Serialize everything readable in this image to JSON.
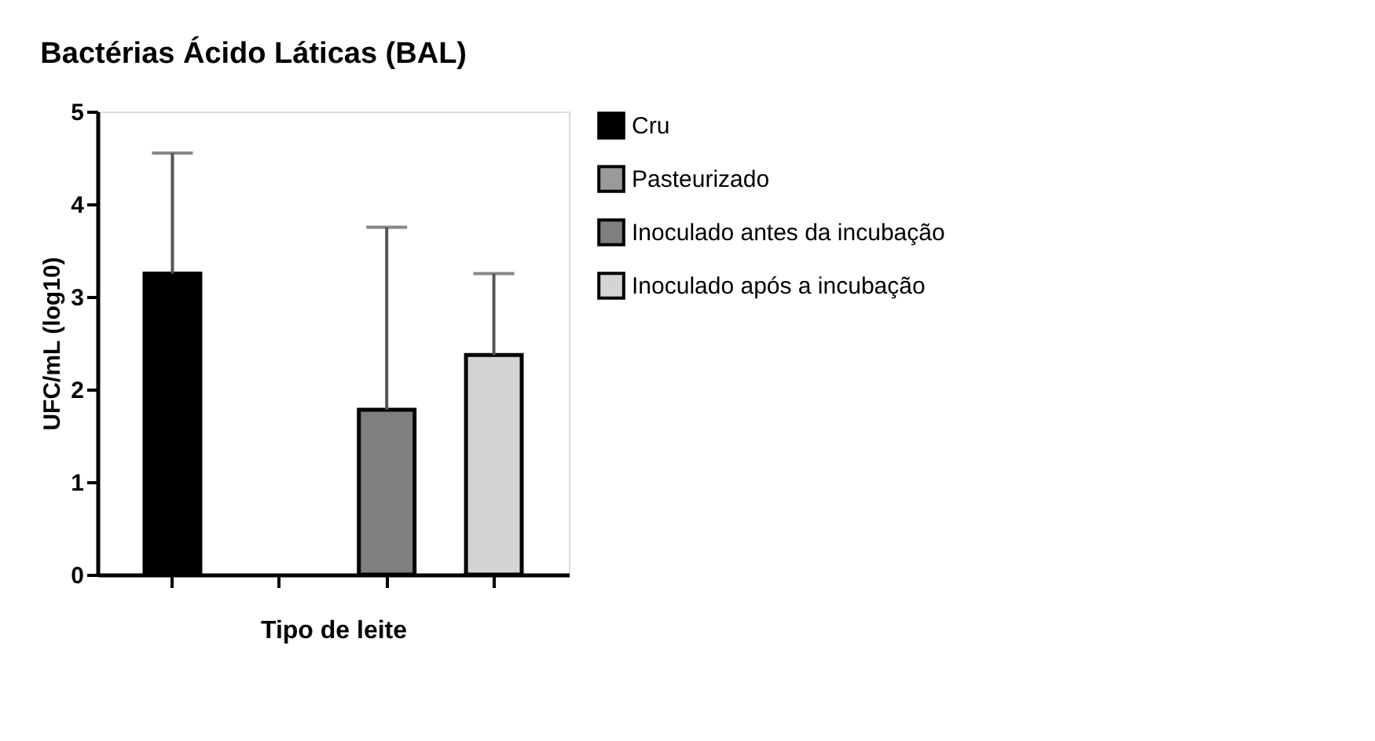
{
  "chart_data": {
    "type": "bar",
    "title": "Bactérias Ácido Láticas (BAL)",
    "xlabel": "Tipo de leite",
    "ylabel": "UFC/mL (log10)",
    "categories": [
      null,
      null,
      null,
      null
    ],
    "series": [
      {
        "name": "Cru",
        "color": "#000000",
        "values": [
          3.25,
          null,
          null,
          null
        ],
        "errors": [
          [
            3.25,
            4.55
          ],
          null,
          null,
          null
        ]
      },
      {
        "name": "Pasteurizado",
        "color": "#9a9a9a",
        "values": [
          null,
          null,
          null,
          null
        ]
      },
      {
        "name": "Inoculado antes da incubação",
        "color": "#7f7f7f",
        "values": [
          null,
          null,
          1.78,
          null
        ],
        "errors": [
          null,
          null,
          [
            1.78,
            3.75
          ],
          null
        ]
      },
      {
        "name": "Inoculado após a incubação",
        "color": "#d4d4d4",
        "values": [
          null,
          null,
          null,
          2.37
        ],
        "errors": [
          null,
          null,
          null,
          [
            2.37,
            3.25
          ]
        ]
      }
    ],
    "ylim": [
      0,
      5
    ],
    "yticks": [
      0,
      1,
      2,
      3,
      4,
      5
    ],
    "grid": false,
    "legend": "right",
    "tick_labels": "y"
  }
}
